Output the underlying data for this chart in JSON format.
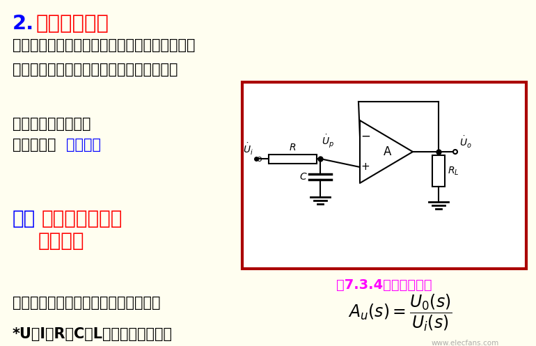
{
  "bg_color": "#FFFEF0",
  "title_number": "2.",
  "title_text": "有源滤波电路",
  "title_color": "#FF0000",
  "title_number_color": "#0000FF",
  "line1": "无源滤波电路受负载影响很大，滤波特性较差。",
  "line2": "为了提高滤波特性，可使用有源滤波电路。",
  "line3a": "组成电路时，应选用",
  "line3b_prefix": "带宽合适的",
  "line3b_highlight": "集成运放",
  "highlight_color": "#0000FF",
  "section4_all_color": "#0000FF",
  "section4_prefix": "四、",
  "section4_text_color": "#FF0000",
  "section4_text": "有源滤波电路的",
  "section4_line2": "传递函数",
  "fig_caption": "图7.3.4有源滤波电路",
  "fig_caption_color": "#FF00FF",
  "formula_prefix": "输出量的象函数与输入量的象函数之比",
  "bottom_line": "*U、I、R、C、L的象函数表示方法",
  "watermark": "www.elecfans.com",
  "box_color": "#AA0000",
  "text_color": "#000000"
}
